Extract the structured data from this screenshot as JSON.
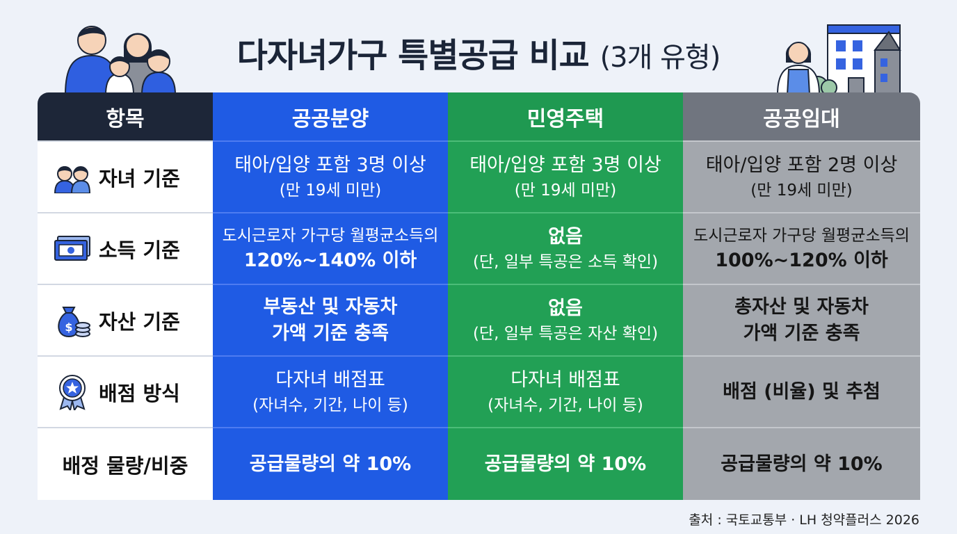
{
  "title": {
    "main": "다자녀가구 특별공급 비교",
    "sub": "(3개 유형)"
  },
  "header": {
    "label": "항목",
    "col_a": "공공분양",
    "col_b": "민영주택",
    "col_c": "공공임대"
  },
  "rows": [
    {
      "label": "자녀 기준",
      "icon": "children-icon",
      "a": [
        "태아/입양 포함 3명 이상",
        "(만 19세 미만)"
      ],
      "b": [
        "태아/입양 포함 3명 이상",
        "(만 19세 미만)"
      ],
      "c": [
        "태아/입양 포함 2명 이상",
        "(만 19세 미만)"
      ]
    },
    {
      "label": "소득 기준",
      "icon": "money-icon",
      "a": [
        "도시근로자 가구당 월평균소득의",
        "120%~140% 이하"
      ],
      "b": [
        "없음",
        "(단, 일부 특공은 소득 확인)"
      ],
      "c": [
        "도시근로자 가구당 월평균소득의",
        "100%~120% 이하"
      ]
    },
    {
      "label": "자산 기준",
      "icon": "money-bag-icon",
      "a": [
        "부동산 및 자동차",
        "가액 기준 충족"
      ],
      "b": [
        "없음",
        "(단, 일부 특공은 자산 확인)"
      ],
      "c": [
        "총자산 및 자동차",
        "가액 기준 충족"
      ]
    },
    {
      "label": "배점 방식",
      "icon": "award-badge-icon",
      "a": [
        "다자녀 배점표",
        "(자녀수, 기간, 나이 등)"
      ],
      "b": [
        "다자녀 배점표",
        "(자녀수, 기간, 나이 등)"
      ],
      "c": [
        "배점 (비율) 및 추첨"
      ]
    },
    {
      "label": "배정 물량/비중",
      "icon": "",
      "a": [
        "공급물량의 약 10%"
      ],
      "b": [
        "공급물량의 약 10%"
      ],
      "c": [
        "공급물량의 약 10%"
      ]
    }
  ],
  "source": "출처 : 국토교통부 · LH 청약플러스 2026",
  "colors": {
    "public_sale": "#1f5be4",
    "private": "#22a055",
    "public_rent": "#a3a7ad",
    "header_dark": "#1d2638"
  }
}
